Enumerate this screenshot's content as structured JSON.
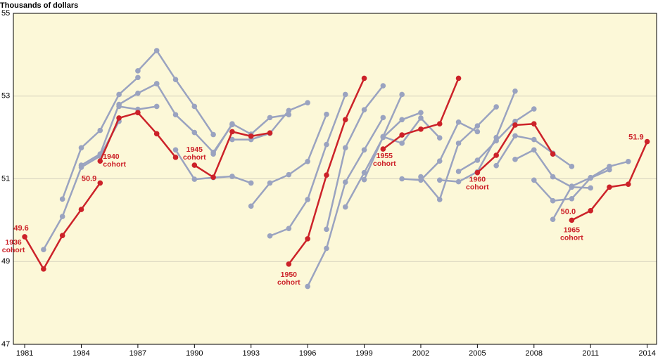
{
  "chart_data": {
    "type": "line",
    "y_label": "Thousands of dollars",
    "ylim": [
      47,
      55
    ],
    "yticks": [
      47,
      49,
      51,
      53,
      55
    ],
    "xlim": [
      1980.4,
      2014.5
    ],
    "xticks": [
      1981,
      1984,
      1987,
      1990,
      1993,
      1996,
      1999,
      2002,
      2005,
      2008,
      2011,
      2014
    ],
    "grid": true,
    "series": [
      {
        "color": "#9aa3c0",
        "x": [
          1982,
          1983,
          1984,
          1985,
          1986
        ],
        "values": [
          49.29,
          50.09,
          51.28,
          51.55,
          52.39
        ]
      },
      {
        "color": "#9aa3c0",
        "x": [
          1983,
          1984,
          1985,
          1986,
          1987
        ],
        "values": [
          50.51,
          51.75,
          52.17,
          53.04,
          53.45
        ]
      },
      {
        "color": "#9aa3c0",
        "x": [
          1984,
          1985,
          1986,
          1987,
          1988
        ],
        "values": [
          51.33,
          51.6,
          52.8,
          53.07,
          53.3
        ]
      },
      {
        "color": "#9aa3c0",
        "x": [
          1986,
          1987,
          1988
        ],
        "values": [
          52.75,
          52.68,
          52.75
        ]
      },
      {
        "color": "#9aa3c0",
        "x": [
          1987,
          1988,
          1989,
          1990,
          1991
        ],
        "values": [
          53.61,
          54.1,
          53.4,
          52.75,
          52.07
        ]
      },
      {
        "color": "#9aa3c0",
        "x": [
          1988,
          1989,
          1990,
          1991,
          1992
        ],
        "values": [
          53.3,
          52.55,
          52.12,
          51.64,
          52.31
        ]
      },
      {
        "color": "#9aa3c0",
        "x": [
          1989,
          1990,
          1991,
          1992,
          1993
        ],
        "values": [
          51.7,
          50.99,
          51.03,
          51.06,
          50.9
        ]
      },
      {
        "color": "#9aa3c0",
        "x": [
          1991,
          1992,
          1993,
          1994,
          1995
        ],
        "values": [
          51.6,
          52.33,
          52.08,
          52.48,
          52.55
        ]
      },
      {
        "color": "#9aa3c0",
        "x": [
          1992,
          1993,
          1994,
          1995,
          1996
        ],
        "values": [
          51.95,
          51.95,
          52.1,
          52.65,
          52.84
        ]
      },
      {
        "color": "#9aa3c0",
        "x": [
          1993,
          1994,
          1995,
          1996,
          1997
        ],
        "values": [
          50.34,
          50.9,
          51.1,
          51.42,
          52.56
        ]
      },
      {
        "color": "#9aa3c0",
        "x": [
          1994,
          1995,
          1996,
          1997,
          1998
        ],
        "values": [
          49.62,
          49.8,
          50.5,
          51.83,
          53.04
        ]
      },
      {
        "color": "#9aa3c0",
        "x": [
          1996,
          1997,
          1998,
          1999,
          2000
        ],
        "values": [
          48.4,
          49.32,
          50.92,
          51.7,
          52.48
        ]
      },
      {
        "color": "#9aa3c0",
        "x": [
          1997,
          1998,
          1999,
          2000
        ],
        "values": [
          49.78,
          51.75,
          52.67,
          53.25
        ]
      },
      {
        "color": "#9aa3c0",
        "x": [
          1998,
          1999,
          2000,
          2001,
          2002
        ],
        "values": [
          50.32,
          51.15,
          52.0,
          52.43,
          52.6
        ]
      },
      {
        "color": "#9aa3c0",
        "x": [
          1999,
          2000,
          2001,
          2002,
          2003
        ],
        "values": [
          50.98,
          52.02,
          51.86,
          52.47,
          51.99
        ]
      },
      {
        "color": "#9aa3c0",
        "x": [
          2000,
          2001
        ],
        "values": [
          52.02,
          53.04
        ]
      },
      {
        "color": "#9aa3c0",
        "x": [
          2001,
          2002,
          2003,
          2004,
          2005
        ],
        "values": [
          51.0,
          50.97,
          51.43,
          52.37,
          52.14
        ]
      },
      {
        "color": "#9aa3c0",
        "x": [
          2002,
          2003,
          2004,
          2005,
          2006
        ],
        "values": [
          51.05,
          50.5,
          51.86,
          52.28,
          52.74
        ]
      },
      {
        "color": "#9aa3c0",
        "x": [
          2003,
          2004,
          2005,
          2006,
          2007
        ],
        "values": [
          50.97,
          50.93,
          51.17,
          52.0,
          53.12
        ]
      },
      {
        "color": "#9aa3c0",
        "x": [
          2004,
          2005,
          2006,
          2007,
          2008
        ],
        "values": [
          51.18,
          51.45,
          51.92,
          52.39,
          52.69
        ]
      },
      {
        "color": "#9aa3c0",
        "x": [
          2006,
          2007,
          2008,
          2009,
          2010
        ],
        "values": [
          51.32,
          52.04,
          51.95,
          51.62,
          51.3
        ]
      },
      {
        "color": "#9aa3c0",
        "x": [
          2007,
          2008,
          2009,
          2010,
          2011
        ],
        "values": [
          51.47,
          51.7,
          51.05,
          50.8,
          50.78
        ]
      },
      {
        "color": "#9aa3c0",
        "x": [
          2008,
          2009,
          2010,
          2011,
          2012
        ],
        "values": [
          50.97,
          50.47,
          50.52,
          51.02,
          51.22
        ]
      },
      {
        "color": "#9aa3c0",
        "x": [
          2009,
          2010,
          2011,
          2012,
          2013
        ],
        "values": [
          50.02,
          50.82,
          51.03,
          51.3,
          51.42
        ]
      },
      {
        "name": "1936 cohort",
        "color": "#cc2229",
        "x": [
          1981,
          1982,
          1983,
          1984,
          1985
        ],
        "values": [
          49.6,
          48.82,
          49.63,
          50.26,
          50.9
        ],
        "value_labels": [
          "49.6",
          null,
          null,
          null,
          "50.9"
        ]
      },
      {
        "name": "1940 cohort",
        "color": "#cc2229",
        "x": [
          1985,
          1986,
          1987,
          1988,
          1989
        ],
        "values": [
          51.43,
          52.47,
          52.6,
          52.09,
          51.52
        ]
      },
      {
        "name": "1945 cohort",
        "color": "#cc2229",
        "x": [
          1990,
          1991,
          1992,
          1993,
          1994
        ],
        "values": [
          51.33,
          51.04,
          52.14,
          52.03,
          52.11
        ]
      },
      {
        "name": "1950 cohort",
        "color": "#cc2229",
        "x": [
          1995,
          1996,
          1997,
          1998,
          1999
        ],
        "values": [
          48.94,
          49.55,
          51.09,
          52.43,
          53.43
        ]
      },
      {
        "name": "1955 cohort",
        "color": "#cc2229",
        "x": [
          2000,
          2001,
          2002,
          2003,
          2004
        ],
        "values": [
          51.72,
          52.06,
          52.2,
          52.33,
          53.43
        ]
      },
      {
        "name": "1960 cohort",
        "color": "#cc2229",
        "x": [
          2005,
          2006,
          2007,
          2008,
          2009
        ],
        "values": [
          51.15,
          51.57,
          52.3,
          52.33,
          51.6
        ]
      },
      {
        "name": "1965 cohort",
        "color": "#cc2229",
        "x": [
          2010,
          2011,
          2012,
          2013,
          2014
        ],
        "values": [
          50.0,
          50.23,
          50.8,
          50.87,
          51.9
        ],
        "value_labels": [
          "50.0",
          null,
          null,
          null,
          "51.9"
        ]
      }
    ]
  }
}
